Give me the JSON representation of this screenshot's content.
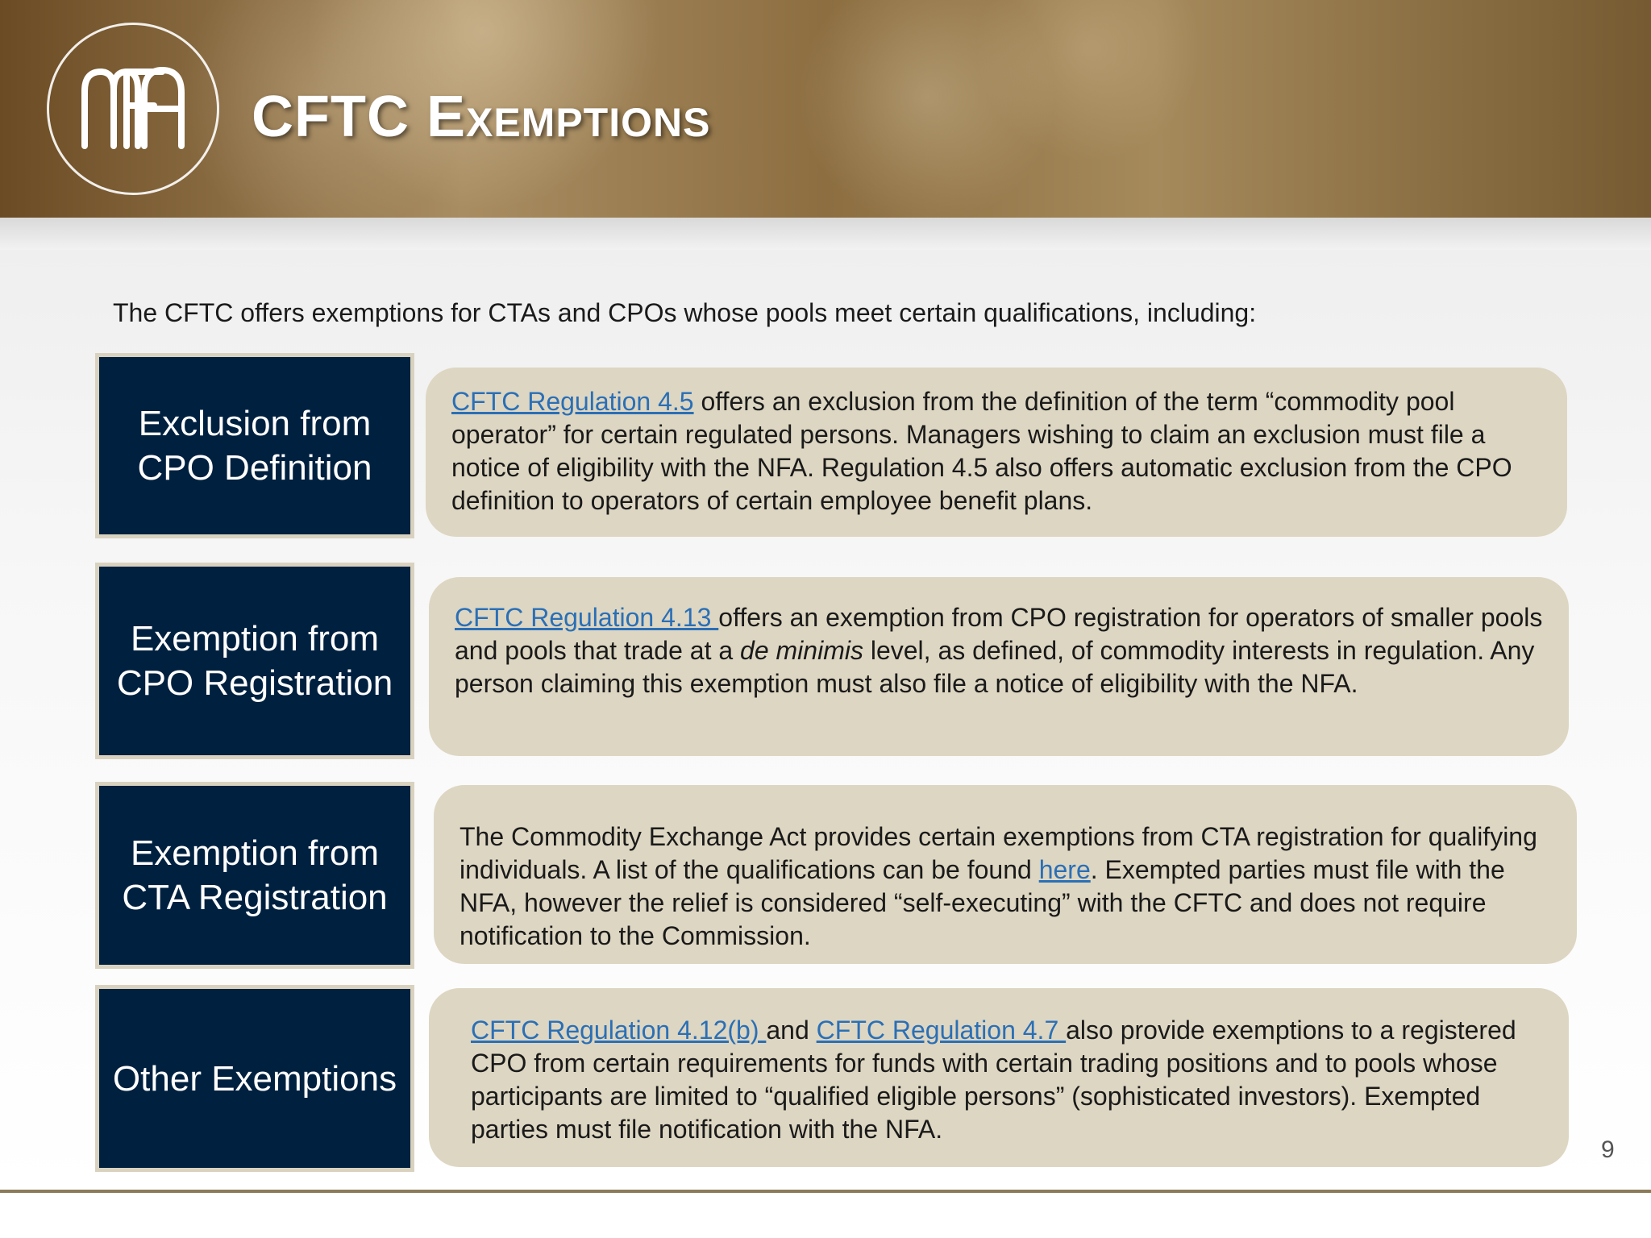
{
  "header": {
    "logo_text": "MFA",
    "title": "CFTC Exemptions"
  },
  "intro": "The CFTC offers exemptions for CTAs and CPOs whose pools meet certain qualifications, including:",
  "rows": [
    {
      "label": "Exclusion from CPO Definition",
      "link1": "CFTC Regulation 4.5",
      "text1": " offers an exclusion from the definition of the term “commodity pool operator” for certain regulated persons.  Managers wishing to claim an exclusion must file a notice of eligibility with the NFA.  Regulation 4.5 also offers automatic exclusion from the CPO definition to operators of certain employee benefit plans."
    },
    {
      "label": "Exemption from CPO Registration",
      "link1": "CFTC Regulation 4.13 ",
      "text1": "offers an exemption from CPO registration for operators of smaller pools and pools that trade at a ",
      "italic": "de minimis",
      "text2": " level, as defined, of commodity interests in regulation.  Any person claiming this exemption must also file a notice of eligibility with the NFA."
    },
    {
      "label": "Exemption from CTA Registration",
      "text1": "The Commodity Exchange Act provides certain exemptions from CTA registration for qualifying individuals.  A list of the qualifications can be found ",
      "link1": "here",
      "text2": ".  Exempted parties must file with the NFA, however the relief is considered “self-executing” with the CFTC and does not require notification to the Commission."
    },
    {
      "label": "Other Exemptions",
      "link1": "CFTC Regulation 4.12(b) ",
      "text1": " and ",
      "link2": "CFTC Regulation 4.7 ",
      "text2": "also provide exemptions to a registered CPO from certain requirements for funds with certain trading positions and to pools whose participants are limited to “qualified eligible persons” (sophisticated investors).  Exempted parties must file notification with the NFA."
    }
  ],
  "page_number": "9"
}
